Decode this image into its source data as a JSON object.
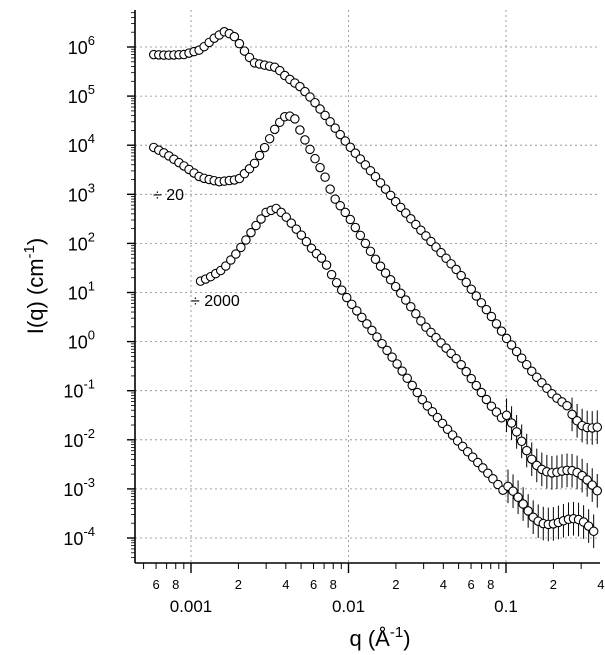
{
  "chart_data": {
    "type": "scatter",
    "title": "",
    "xlabel": {
      "base": "q  (Å",
      "sup": "-1",
      "tail": ")"
    },
    "ylabel": {
      "base": "I(q)  (cm",
      "sup": "-1",
      "tail": ")"
    },
    "xscale": "log",
    "yscale": "log",
    "xlim": [
      0.00042,
      0.043
    ],
    "ylim": [
      4e-05,
      3000000
    ],
    "grid": true,
    "x_major_ticks": [
      {
        "value": 0.001,
        "label": "0.001"
      },
      {
        "value": 0.01,
        "label": "0.01"
      },
      {
        "value": 0.1,
        "label": "0.1"
      }
    ],
    "x_minor_tick_labels": [
      "6",
      "8",
      "2",
      "4",
      "6",
      "8",
      "2",
      "4",
      "6",
      "8",
      "2",
      "4"
    ],
    "y_major_ticks": [
      {
        "value": 1000000,
        "base": "10",
        "exp": "6"
      },
      {
        "value": 100000,
        "base": "10",
        "exp": "5"
      },
      {
        "value": 10000,
        "base": "10",
        "exp": "4"
      },
      {
        "value": 1000,
        "base": "10",
        "exp": "3"
      },
      {
        "value": 100,
        "base": "10",
        "exp": "2"
      },
      {
        "value": 10,
        "base": "10",
        "exp": "1"
      },
      {
        "value": 1,
        "base": "10",
        "exp": "0"
      },
      {
        "value": 0.1,
        "base": "10",
        "exp": "-1"
      },
      {
        "value": 0.01,
        "base": "10",
        "exp": "-2"
      },
      {
        "value": 0.001,
        "base": "10",
        "exp": "-3"
      },
      {
        "value": 0.0001,
        "base": "10",
        "exp": "-4"
      }
    ],
    "annotations": [
      "÷ 20",
      "÷ 2000"
    ],
    "series": [
      {
        "divisor": 1,
        "anchors": [
          [
            0.00058,
            700000
          ],
          [
            0.0007,
            680000
          ],
          [
            0.0009,
            700000
          ],
          [
            0.00115,
            880000
          ],
          [
            0.0014,
            1500000
          ],
          [
            0.00165,
            2100000
          ],
          [
            0.0019,
            1600000
          ],
          [
            0.0022,
            800000
          ],
          [
            0.0025,
            480000
          ],
          [
            0.003,
            420000
          ],
          [
            0.0035,
            380000
          ],
          [
            0.004,
            250000
          ],
          [
            0.005,
            150000
          ],
          [
            0.006,
            80000
          ],
          [
            0.008,
            25000
          ],
          [
            0.01,
            10000
          ],
          [
            0.015,
            2200
          ],
          [
            0.02,
            700
          ],
          [
            0.03,
            160
          ],
          [
            0.05,
            26
          ],
          [
            0.08,
            3.4
          ],
          [
            0.1,
            1.2
          ],
          [
            0.15,
            0.22
          ],
          [
            0.2,
            0.08
          ],
          [
            0.3,
            0.03
          ],
          [
            0.4,
            0.02
          ]
        ],
        "errorbar_from": 0.25
      },
      {
        "divisor": 20,
        "anchors": [
          [
            0.00058,
            9000
          ],
          [
            0.0007,
            6500
          ],
          [
            0.0009,
            3800
          ],
          [
            0.00115,
            2200
          ],
          [
            0.0015,
            1800
          ],
          [
            0.002,
            2000
          ],
          [
            0.0025,
            4000
          ],
          [
            0.003,
            10000
          ],
          [
            0.0035,
            25000
          ],
          [
            0.004,
            40000
          ],
          [
            0.0045,
            38000
          ],
          [
            0.005,
            18000
          ],
          [
            0.006,
            6000
          ],
          [
            0.007,
            2500
          ],
          [
            0.008,
            900
          ],
          [
            0.01,
            350
          ],
          [
            0.015,
            45
          ],
          [
            0.02,
            13
          ],
          [
            0.025,
            5
          ],
          [
            0.03,
            2.2
          ],
          [
            0.05,
            0.4
          ],
          [
            0.08,
            0.05
          ],
          [
            0.1,
            0.022
          ],
          [
            0.15,
            0.005
          ],
          [
            0.2,
            0.0025
          ],
          [
            0.3,
            0.0013
          ],
          [
            0.4,
            0.0009
          ]
        ],
        "errorbar_from": 0.1
      },
      {
        "divisor": 2000,
        "anchors": [
          [
            0.00115,
            17
          ],
          [
            0.0013,
            20
          ],
          [
            0.0016,
            30
          ],
          [
            0.002,
            70
          ],
          [
            0.0025,
            200
          ],
          [
            0.003,
            430
          ],
          [
            0.0035,
            520
          ],
          [
            0.004,
            350
          ],
          [
            0.005,
            150
          ],
          [
            0.006,
            70
          ],
          [
            0.007,
            45
          ],
          [
            0.008,
            20
          ],
          [
            0.01,
            7
          ],
          [
            0.015,
            1.3
          ],
          [
            0.02,
            0.38
          ],
          [
            0.03,
            0.06
          ],
          [
            0.05,
            0.009
          ],
          [
            0.08,
            0.0018
          ],
          [
            0.1,
            0.0008
          ],
          [
            0.15,
            0.00035
          ],
          [
            0.2,
            0.00025
          ],
          [
            0.3,
            0.00015
          ],
          [
            0.4,
            0.0001
          ]
        ],
        "errorbar_from": 0.1
      }
    ]
  }
}
